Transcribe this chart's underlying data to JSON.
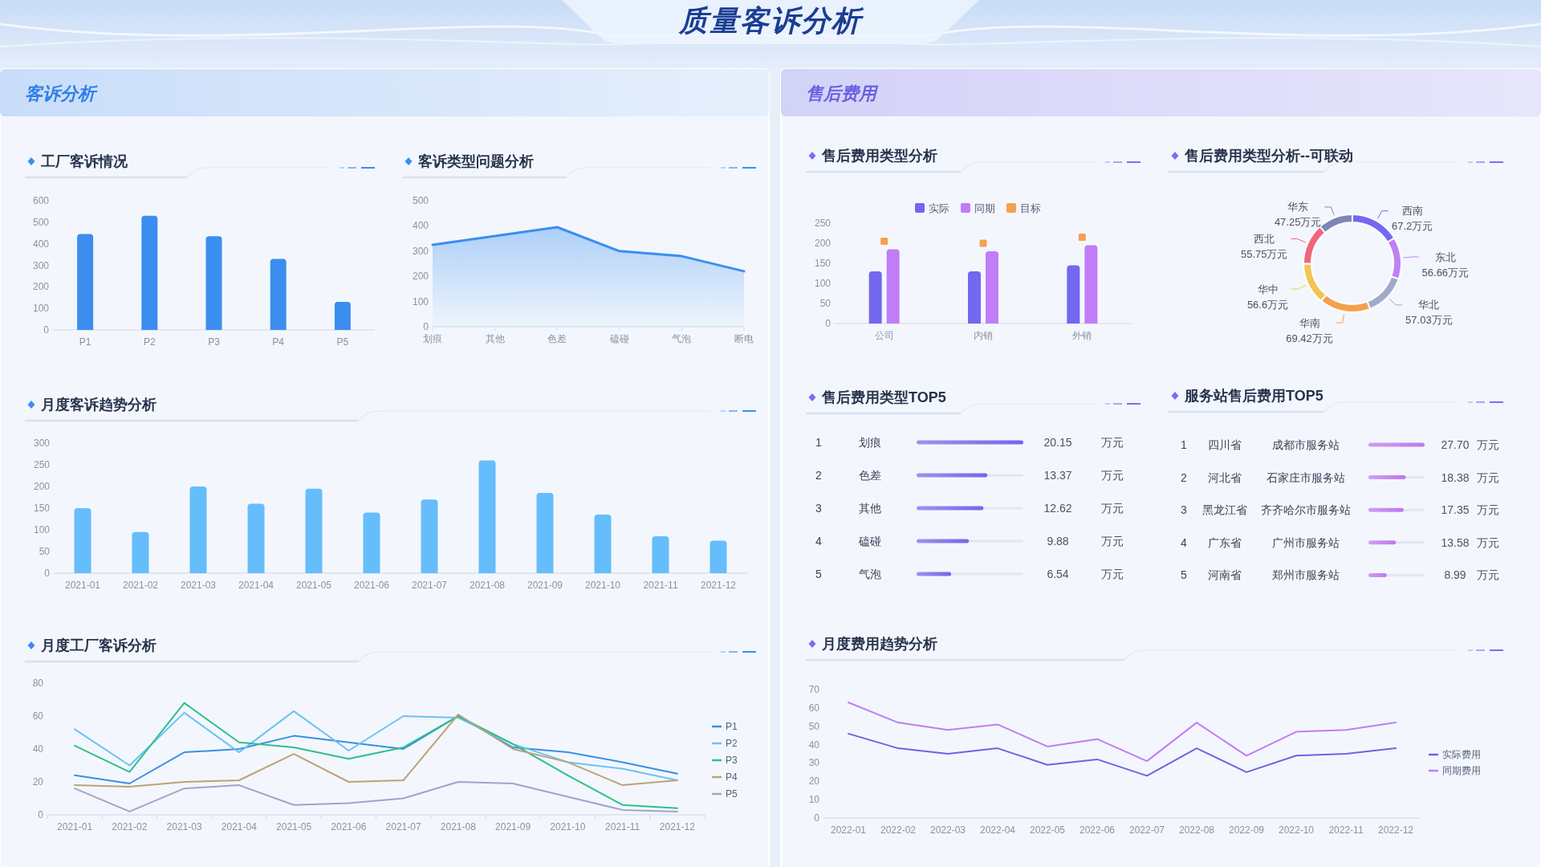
{
  "chart_data": [
    {
      "type": "other",
      "title": "质量客诉分析"
    },
    {
      "type": "other",
      "title": "客诉分析"
    },
    {
      "type": "bar",
      "title": "工厂客诉情况",
      "categories": [
        "P1",
        "P2",
        "P3",
        "P4",
        "P5"
      ],
      "values": [
        445,
        530,
        435,
        330,
        130
      ],
      "color": "#3b8ef0",
      "ylim": [
        0,
        600
      ],
      "yticks": [
        0,
        100,
        200,
        300,
        400,
        500,
        600
      ]
    },
    {
      "type": "area",
      "title": "客诉类型问题分析",
      "categories": [
        "划痕",
        "其他",
        "色差",
        "磕碰",
        "气泡",
        "断电"
      ],
      "values": [
        325,
        360,
        395,
        300,
        280,
        220
      ],
      "color": "#3b8ef0",
      "ylim": [
        0,
        500
      ],
      "yticks": [
        0,
        100,
        200,
        300,
        400,
        500
      ]
    },
    {
      "type": "bar",
      "title": "月度客诉趋势分析",
      "categories": [
        "2021-01",
        "2021-02",
        "2021-03",
        "2021-04",
        "2021-05",
        "2021-06",
        "2021-07",
        "2021-08",
        "2021-09",
        "2021-10",
        "2021-11",
        "2021-12"
      ],
      "values": [
        150,
        95,
        200,
        160,
        195,
        140,
        170,
        260,
        185,
        135,
        85,
        75
      ],
      "color": "#66bdfb",
      "ylim": [
        0,
        300
      ],
      "yticks": [
        0,
        50,
        100,
        150,
        200,
        250,
        300
      ]
    },
    {
      "type": "line",
      "title": "月度工厂客诉分析",
      "categories": [
        "2021-01",
        "2021-02",
        "2021-03",
        "2021-04",
        "2021-05",
        "2021-06",
        "2021-07",
        "2021-08",
        "2021-09",
        "2021-10",
        "2021-11",
        "2021-12"
      ],
      "series": [
        {
          "name": "P1",
          "color": "#3a8ee6",
          "values": [
            24,
            19,
            38,
            40,
            48,
            44,
            40,
            60,
            41,
            38,
            32,
            25
          ]
        },
        {
          "name": "P2",
          "color": "#6cc1f5",
          "values": [
            52,
            30,
            62,
            38,
            63,
            39,
            60,
            59,
            43,
            32,
            28,
            21
          ]
        },
        {
          "name": "P3",
          "color": "#2ebf8c",
          "values": [
            42,
            26,
            68,
            44,
            41,
            34,
            41,
            60,
            43,
            24,
            6,
            4
          ]
        },
        {
          "name": "P4",
          "color": "#bba377",
          "values": [
            18,
            17,
            20,
            21,
            37,
            20,
            21,
            61,
            40,
            32,
            18,
            21
          ]
        },
        {
          "name": "P5",
          "color": "#a0a4ca",
          "values": [
            16,
            2,
            16,
            18,
            6,
            7,
            10,
            20,
            19,
            11,
            3,
            2
          ]
        }
      ],
      "ylim": [
        0,
        80
      ],
      "yticks": [
        0,
        20,
        40,
        60,
        80
      ],
      "legend": "right"
    },
    {
      "type": "other",
      "title": "售后费用"
    },
    {
      "type": "bar",
      "title": "售后费用类型分析",
      "categories": [
        "公司",
        "内销",
        "外销"
      ],
      "series": [
        {
          "name": "实际",
          "color": "#7467f0",
          "values": [
            130,
            130,
            145
          ]
        },
        {
          "name": "同期",
          "color": "#c17cf7",
          "values": [
            185,
            180,
            195
          ]
        },
        {
          "name": "目标",
          "type": "scatter",
          "marker": "square",
          "color": "#f5a14e",
          "values": [
            205,
            200,
            215
          ]
        }
      ],
      "ylim": [
        0,
        250
      ],
      "yticks": [
        0,
        50,
        100,
        150,
        200,
        250
      ],
      "legend": "top"
    },
    {
      "type": "donut",
      "title": "售后费用类型分析--可联动",
      "categories": [
        "西南",
        "东北",
        "华北",
        "华南",
        "华中",
        "西北",
        "华东"
      ],
      "values": [
        67.2,
        56.66,
        57.03,
        69.42,
        56.6,
        55.75,
        47.25
      ],
      "value_labels": [
        "67.2万元",
        "56.66万元",
        "57.03万元",
        "69.42万元",
        "56.6万元",
        "55.75万元",
        "47.25万元"
      ],
      "colors": [
        "#7468f0",
        "#c17ff7",
        "#a2aacb",
        "#f6a04d",
        "#f4c453",
        "#f0667c",
        "#7d87b5"
      ]
    },
    {
      "type": "bar",
      "orientation": "horizontal",
      "title": "售后费用类型TOP5",
      "categories": [
        "划痕",
        "色差",
        "其他",
        "磕碰",
        "气泡"
      ],
      "values": [
        20.15,
        13.37,
        12.62,
        9.88,
        6.54
      ],
      "data_labels": true,
      "color": "#7466ea",
      "xlim": [
        0,
        20.15
      ],
      "tick_labels": "y",
      "annotations": [
        "1",
        "万元",
        "2",
        "万元",
        "3",
        "万元",
        "4",
        "万元",
        "5",
        "万元"
      ]
    },
    {
      "type": "bar",
      "orientation": "horizontal",
      "title": "服务站售后费用TOP5",
      "categories": [
        "成都市服务站",
        "石家庄市服务站",
        "齐齐哈尔市服务站",
        "广州市服务站",
        "郑州市服务站"
      ],
      "values": [
        27.7,
        18.38,
        17.35,
        13.58,
        8.99
      ],
      "value_labels": [
        "27.70",
        "18.38",
        "17.35",
        "13.58",
        "8.99"
      ],
      "color": "#bf78f0",
      "xlim": [
        0,
        27.7
      ],
      "tick_labels": "y",
      "annotations": [
        "1",
        "四川省",
        "万元",
        "2",
        "河北省",
        "万元",
        "3",
        "黑龙江省",
        "万元",
        "4",
        "广东省",
        "万元",
        "5",
        "河南省",
        "万元"
      ]
    },
    {
      "type": "line",
      "title": "月度费用趋势分析",
      "categories": [
        "2022-01",
        "2022-02",
        "2022-03",
        "2022-04",
        "2022-05",
        "2022-06",
        "2022-07",
        "2022-08",
        "2022-09",
        "2022-10",
        "2022-11",
        "2022-12"
      ],
      "series": [
        {
          "name": "实际费用",
          "color": "#6f62e6",
          "values": [
            46,
            38,
            35,
            38,
            29,
            32,
            23,
            38,
            25,
            34,
            35,
            38
          ]
        },
        {
          "name": "同期费用",
          "color": "#c17cf5",
          "values": [
            63,
            52,
            48,
            51,
            39,
            43,
            31,
            52,
            34,
            47,
            48,
            52
          ]
        }
      ],
      "ylim": [
        0,
        70
      ],
      "yticks": [
        0,
        10,
        20,
        30,
        40,
        50,
        60,
        70
      ],
      "legend": "right"
    }
  ]
}
